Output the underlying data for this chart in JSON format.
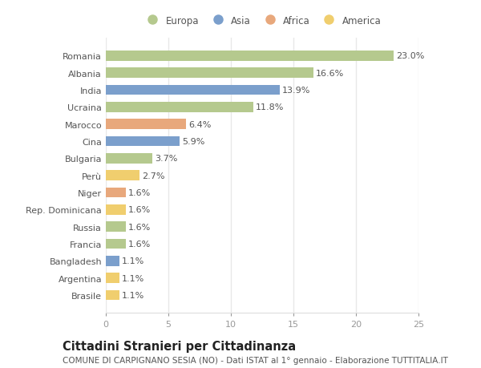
{
  "countries": [
    "Romania",
    "Albania",
    "India",
    "Ucraina",
    "Marocco",
    "Cina",
    "Bulgaria",
    "Perù",
    "Niger",
    "Rep. Dominicana",
    "Russia",
    "Francia",
    "Bangladesh",
    "Argentina",
    "Brasile"
  ],
  "values": [
    23.0,
    16.6,
    13.9,
    11.8,
    6.4,
    5.9,
    3.7,
    2.7,
    1.6,
    1.6,
    1.6,
    1.6,
    1.1,
    1.1,
    1.1
  ],
  "continents": [
    "Europa",
    "Europa",
    "Asia",
    "Europa",
    "Africa",
    "Asia",
    "Europa",
    "America",
    "Africa",
    "America",
    "Europa",
    "Europa",
    "Asia",
    "America",
    "America"
  ],
  "colors": {
    "Asia": "#7b9fcc",
    "Africa": "#e8a87c",
    "America": "#f0ce6e"
  },
  "colors2": {
    "Europa": "#b5c98e",
    "Asia": "#7b9fcc",
    "Africa": "#e8a87c",
    "America": "#f0ce6e"
  },
  "legend_order": [
    "Europa",
    "Asia",
    "Africa",
    "America"
  ],
  "xlim": [
    0,
    25
  ],
  "xticks": [
    0,
    5,
    10,
    15,
    20,
    25
  ],
  "title": "Cittadini Stranieri per Cittadinanza",
  "subtitle": "COMUNE DI CARPIGNANO SESIA (NO) - Dati ISTAT al 1° gennaio - Elaborazione TUTTITALIA.IT",
  "bg_color": "#ffffff",
  "bar_height": 0.6,
  "label_fontsize": 8,
  "value_fontsize": 8,
  "title_fontsize": 10.5,
  "subtitle_fontsize": 7.5
}
